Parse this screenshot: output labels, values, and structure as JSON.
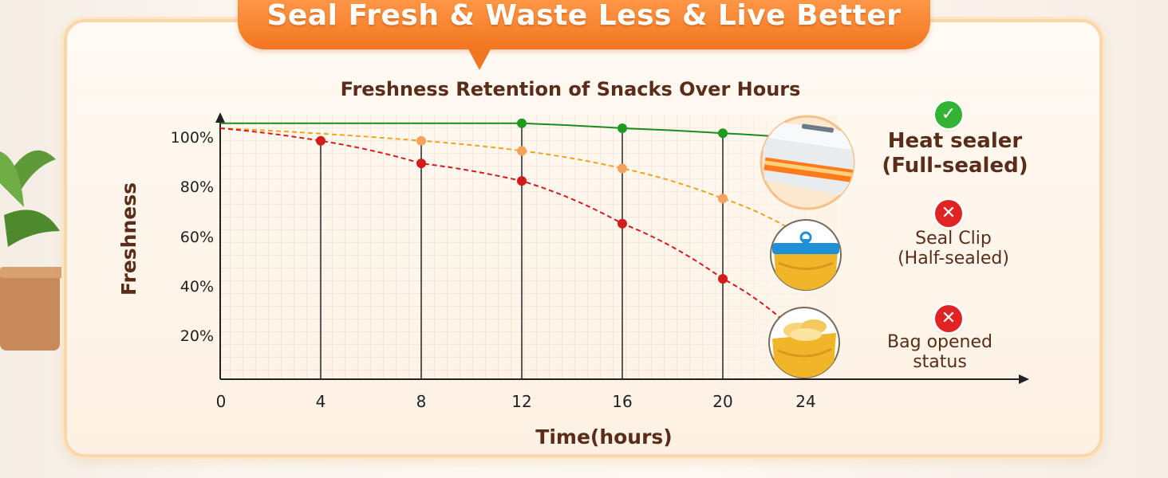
{
  "banner": {
    "title": "Seal Fresh & Waste Less & Live Better"
  },
  "chart_data": {
    "type": "line",
    "title": "Freshness Retention of Snacks Over Hours",
    "xlabel": "Time(hours)",
    "ylabel": "Freshness",
    "x_ticks": [
      "0",
      "4",
      "8",
      "12",
      "16",
      "20",
      "24"
    ],
    "y_ticks": [
      "100%",
      "80%",
      "60%",
      "40%",
      "20%"
    ],
    "xlim": [
      0,
      24
    ],
    "ylim": [
      0,
      100
    ],
    "grid": true,
    "series": [
      {
        "name": "Heat sealer (Full-sealed)",
        "color": "#1f8a1f",
        "dashed": false,
        "x": [
          0,
          12,
          16,
          20,
          23
        ],
        "y": [
          102,
          102,
          100,
          98,
          96
        ],
        "markers": [
          12,
          16,
          20
        ]
      },
      {
        "name": "Seal Clip (Half-sealed)",
        "color": "#f4a21b",
        "dashed": true,
        "x": [
          0,
          8,
          12,
          16,
          20,
          23
        ],
        "y": [
          100,
          95,
          91,
          84,
          72,
          58
        ],
        "markers": [
          8,
          12,
          16,
          20
        ]
      },
      {
        "name": "Bag opened status",
        "color": "#d31c1c",
        "dashed": true,
        "x": [
          0,
          4,
          8,
          12,
          16,
          20,
          23
        ],
        "y": [
          100,
          95,
          86,
          79,
          62,
          40,
          18
        ],
        "markers": [
          4,
          8,
          12,
          16,
          20
        ]
      }
    ]
  },
  "legend": {
    "heat_line1": "Heat sealer",
    "heat_line2": "(Full-sealed)",
    "clip_line1": "Seal Clip",
    "clip_line2": "(Half-sealed)",
    "bag_line1": "Bag opened",
    "bag_line2": "status",
    "ok_icon": "check-icon",
    "fail_icon": "cross-icon"
  }
}
